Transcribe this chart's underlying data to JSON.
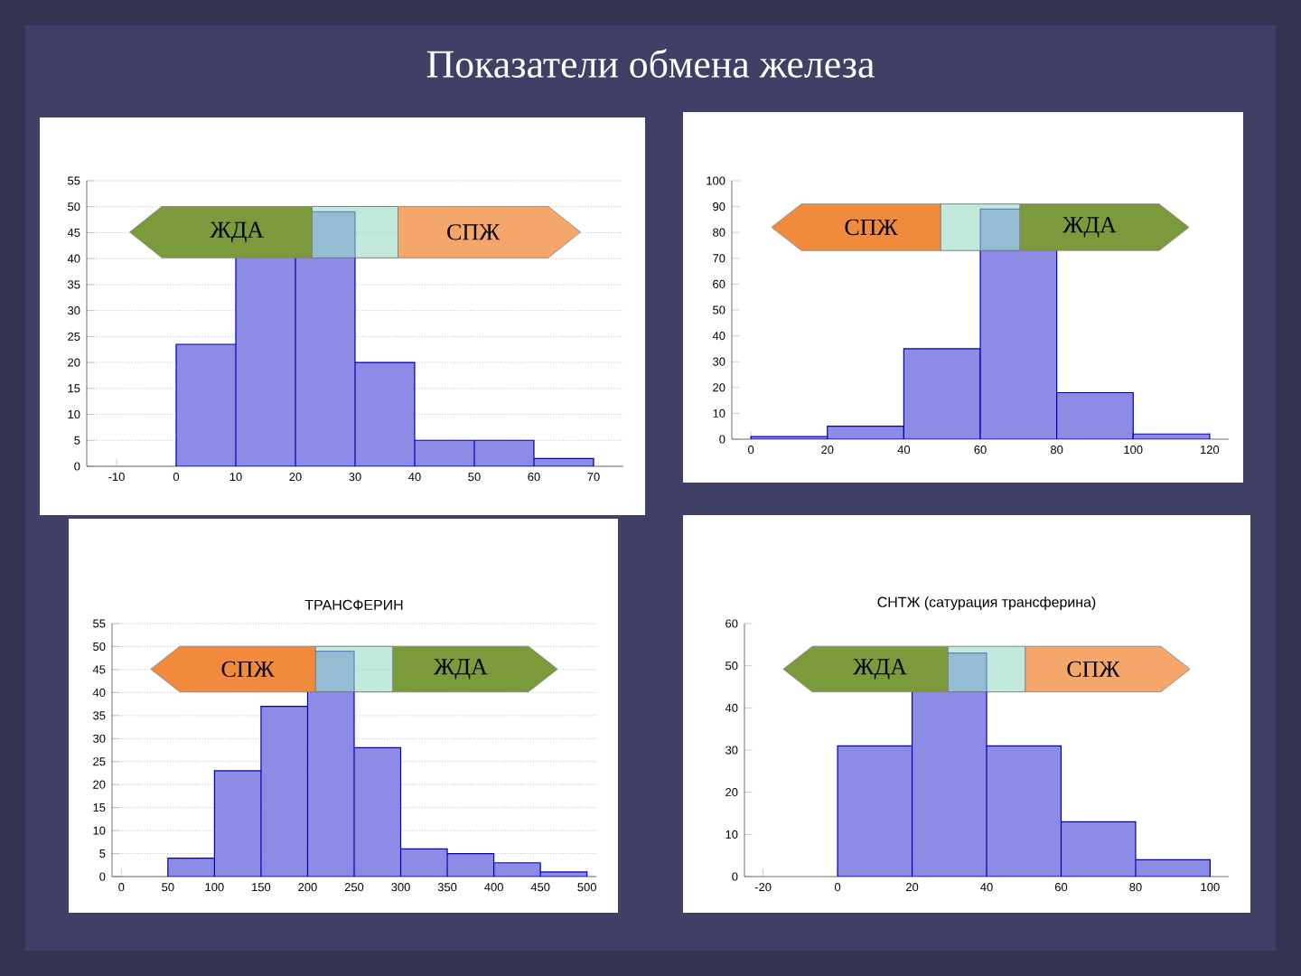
{
  "chart_data": [
    {
      "type": "histogram",
      "title": "Показатели обмена железа",
      "bins": [
        0,
        10,
        20,
        30,
        40,
        50,
        60,
        70
      ],
      "values": [
        23.5,
        41,
        49,
        20,
        5,
        5,
        1.5
      ],
      "color": "#8c8ce6",
      "xlim": [
        -15,
        75
      ],
      "xticks": [
        -10,
        0,
        10,
        20,
        30,
        40,
        50,
        60,
        70
      ],
      "ylim": [
        0,
        55
      ],
      "yticks": [
        0,
        5,
        10,
        15,
        20,
        25,
        30,
        35,
        40,
        45,
        50,
        55
      ],
      "grid": "y",
      "annotations": [
        "ЖДА",
        "СПЖ"
      ]
    },
    {
      "type": "histogram",
      "bins": [
        0,
        20,
        40,
        60,
        80,
        100,
        120
      ],
      "values": [
        1,
        5,
        35,
        89,
        18,
        2
      ],
      "color": "#8c8ce6",
      "xlim": [
        -5,
        125
      ],
      "xticks": [
        0,
        20,
        40,
        60,
        80,
        100,
        120
      ],
      "ylim": [
        0,
        100
      ],
      "yticks": [
        0,
        10,
        20,
        30,
        40,
        50,
        60,
        70,
        80,
        90,
        100
      ],
      "annotations": [
        "СПЖ",
        "ЖДА"
      ]
    },
    {
      "type": "histogram",
      "title": "ТРАНСФЕРИН",
      "bins": [
        50,
        100,
        150,
        200,
        250,
        300,
        350,
        400,
        450,
        500
      ],
      "values": [
        4,
        23,
        37,
        49,
        28,
        6,
        5,
        3,
        1
      ],
      "color": "#8c8ce6",
      "xlim": [
        -10,
        510
      ],
      "xticks": [
        0,
        50,
        100,
        150,
        200,
        250,
        300,
        350,
        400,
        450,
        500
      ],
      "ylim": [
        0,
        55
      ],
      "yticks": [
        0,
        5,
        10,
        15,
        20,
        25,
        30,
        35,
        40,
        45,
        50,
        55
      ],
      "grid": "y",
      "annotations": [
        "СПЖ",
        "ЖДА"
      ]
    },
    {
      "type": "histogram",
      "title": "СНТЖ (сатурация трансферина)",
      "bins": [
        0,
        20,
        40,
        60,
        80,
        100
      ],
      "values": [
        31,
        53,
        31,
        13,
        4
      ],
      "color": "#8c8ce6",
      "xlim": [
        -25,
        105
      ],
      "xticks": [
        -20,
        0,
        20,
        40,
        60,
        80,
        100
      ],
      "ylim": [
        0,
        60
      ],
      "yticks": [
        0,
        10,
        20,
        30,
        40,
        50,
        60
      ],
      "annotations": [
        "ЖДА",
        "СПЖ"
      ]
    }
  ]
}
